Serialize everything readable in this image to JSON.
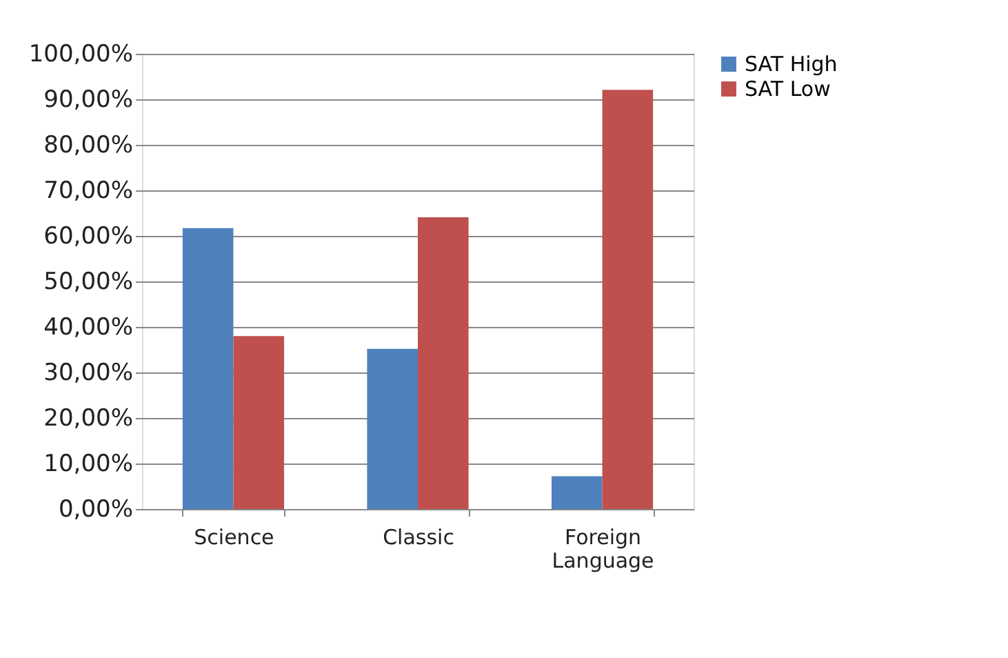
{
  "chart_data": {
    "type": "bar",
    "categories": [
      "Science",
      "Classic",
      "Foreign Language"
    ],
    "series": [
      {
        "name": "SAT High",
        "color": "#4f81bd",
        "values": [
          61.7,
          35.2,
          7.2
        ]
      },
      {
        "name": "SAT Low",
        "color": "#c0504d",
        "values": [
          38.0,
          64.1,
          92.1
        ]
      }
    ],
    "ylim": [
      0,
      100
    ],
    "yticks": [
      {
        "value": 0,
        "label": "0,00%"
      },
      {
        "value": 10,
        "label": "10,00%"
      },
      {
        "value": 20,
        "label": "20,00%"
      },
      {
        "value": 30,
        "label": "30,00%"
      },
      {
        "value": 40,
        "label": "40,00%"
      },
      {
        "value": 50,
        "label": "50,00%"
      },
      {
        "value": 60,
        "label": "60,00%"
      },
      {
        "value": 70,
        "label": "70,00%"
      },
      {
        "value": 80,
        "label": "80,00%"
      },
      {
        "value": 90,
        "label": "90,00%"
      },
      {
        "value": 100,
        "label": "100,00%"
      }
    ],
    "grid": "y",
    "legend": "right"
  }
}
